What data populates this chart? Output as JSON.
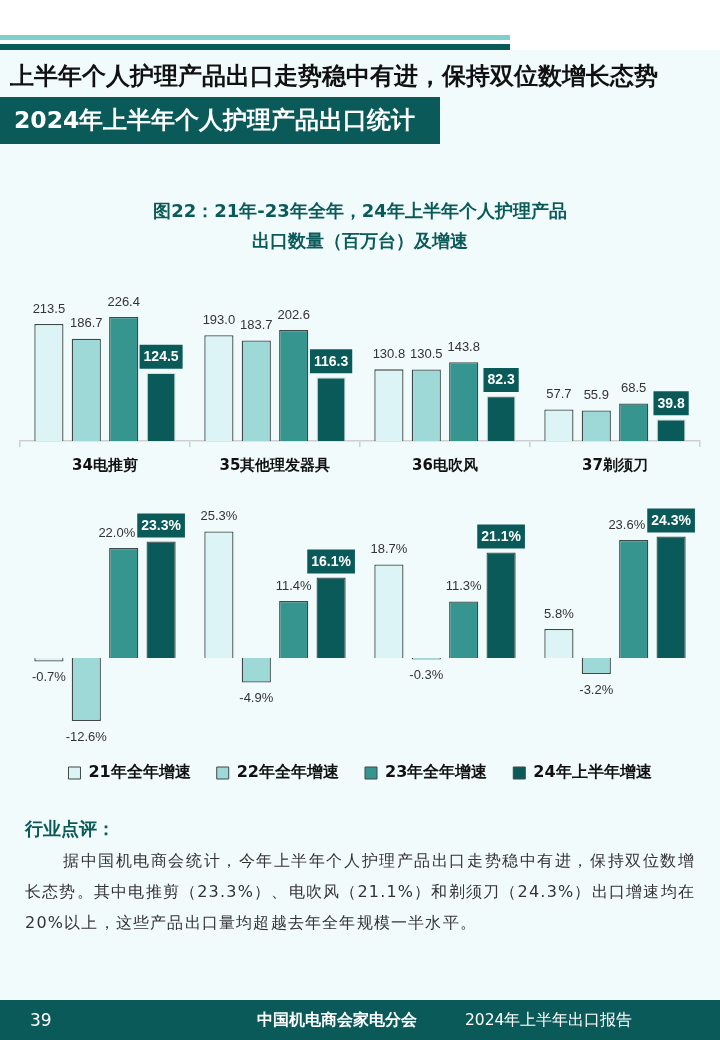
{
  "chart_data": [
    {
      "type": "bar",
      "title": "图22：21年-23年全年，24年上半年个人护理产品出口数量（百万台）及增速",
      "annotations": [
        "上半年个人护理产品出口走势稳中有进，保持双位数增长态势",
        "2024年上半年个人护理产品出口统计"
      ],
      "categories": [
        "34电推剪",
        "35其他理发器具",
        "36电吹风",
        "37剃须刀"
      ],
      "series": [
        {
          "color": "#dcf4f6",
          "values": [
            213.5,
            193.0,
            130.8,
            57.7
          ],
          "value_labels": [
            "213.5",
            "193.0",
            "130.8",
            "57.7"
          ]
        },
        {
          "color": "#9ed9d8",
          "values": [
            186.7,
            183.7,
            130.5,
            55.9
          ],
          "value_labels": [
            "186.7",
            "183.7",
            "130.5",
            "55.9"
          ]
        },
        {
          "color": "#379590",
          "values": [
            226.4,
            202.6,
            143.8,
            68.5
          ],
          "value_labels": [
            "226.4",
            "202.6",
            "143.8",
            "68.5"
          ]
        },
        {
          "color": "#0b5a5a",
          "values": [
            124.5,
            116.3,
            82.3,
            39.8
          ],
          "value_labels": [
            "124.5",
            "116.3",
            "82.3",
            "39.8"
          ]
        }
      ],
      "tick_labels": "x"
    },
    {
      "type": "bar",
      "annotations": [
        "行业点评：",
        "据中国机电商会统计，今年上半年个人护理产品出口走势稳中有进，保持双位数增长态势。其中电推剪（23.3%）、电吹风（21.1%）和剃须刀（24.3%）出口增速均在20%以上，这些产品出口量均超越去年全年规模一半水平。",
        "39",
        "中国机电商会家电分会",
        "2024年上半年出口报告"
      ],
      "categories": [
        null,
        null,
        null,
        null
      ],
      "series": [
        {
          "name": "21年全年增速",
          "color": "#dcf4f6",
          "values": [
            -0.7,
            25.3,
            18.7,
            5.8
          ],
          "value_labels": [
            "-0.7%",
            "25.3%",
            "18.7%",
            "5.8%"
          ]
        },
        {
          "name": "22年全年增速",
          "color": "#9ed9d8",
          "values": [
            -12.6,
            -4.9,
            -0.3,
            -3.2
          ],
          "value_labels": [
            "-12.6%",
            "-4.9%",
            "-0.3%",
            "-3.2%"
          ]
        },
        {
          "name": "23年全年增速",
          "color": "#379590",
          "values": [
            22.0,
            11.4,
            11.3,
            23.6
          ],
          "value_labels": [
            "22.0%",
            "11.4%",
            "11.3%",
            "23.6%"
          ]
        },
        {
          "name": "24年上半年增速",
          "color": "#0b5a5a",
          "values": [
            23.3,
            16.1,
            21.1,
            24.3
          ],
          "value_labels": [
            "23.3%",
            "16.1%",
            "21.1%",
            "24.3%"
          ]
        }
      ],
      "legend": "bottom",
      "tick_labels": false
    }
  ]
}
